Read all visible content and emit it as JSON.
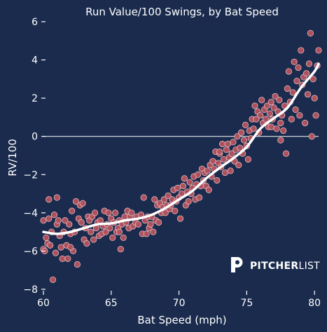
{
  "colors": {
    "background": "#1a2b4d",
    "points_fill": "#b3545f",
    "points_stroke": "#e6b8bd",
    "trend": "#ffffff",
    "zero_line": "#ffffff",
    "text": "#ffffff"
  },
  "chart_data": {
    "type": "scatter",
    "title": "Run Value/100 Swings, by Bat Speed",
    "xlabel": "Bat Speed (mph)",
    "ylabel": "RV/100",
    "xlim": [
      60,
      80.3
    ],
    "ylim": [
      -8,
      6
    ],
    "x_ticks": [
      "60",
      "65",
      "70",
      "75",
      "80"
    ],
    "y_ticks": [
      "6",
      "4",
      "2",
      "0",
      "−2",
      "−4",
      "−6",
      "−8"
    ],
    "grid": false,
    "reference_line_y": 0,
    "points": [
      [
        60.0,
        -4.4
      ],
      [
        60.0,
        -5.9
      ],
      [
        60.1,
        -6.0
      ],
      [
        60.2,
        -5.3
      ],
      [
        60.3,
        -5.6
      ],
      [
        60.4,
        -4.3
      ],
      [
        60.4,
        -3.3
      ],
      [
        60.5,
        -5.7
      ],
      [
        60.6,
        -5.0
      ],
      [
        60.7,
        -7.5
      ],
      [
        60.8,
        -4.1
      ],
      [
        60.9,
        -6.1
      ],
      [
        61.0,
        -3.2
      ],
      [
        61.0,
        -4.6
      ],
      [
        61.1,
        -4.4
      ],
      [
        61.2,
        -5.2
      ],
      [
        61.3,
        -5.8
      ],
      [
        61.4,
        -6.4
      ],
      [
        61.5,
        -5.0
      ],
      [
        61.6,
        -4.4
      ],
      [
        61.7,
        -5.7
      ],
      [
        61.8,
        -6.4
      ],
      [
        61.9,
        -4.6
      ],
      [
        62.0,
        -5.1
      ],
      [
        62.1,
        -3.9
      ],
      [
        62.2,
        -6.0
      ],
      [
        62.3,
        -5.0
      ],
      [
        62.4,
        -3.4
      ],
      [
        62.5,
        -6.7
      ],
      [
        62.6,
        -4.3
      ],
      [
        62.7,
        -3.6
      ],
      [
        62.8,
        -4.5
      ],
      [
        62.9,
        -3.5
      ],
      [
        63.0,
        -5.4
      ],
      [
        63.1,
        -4.8
      ],
      [
        63.2,
        -5.6
      ],
      [
        63.3,
        -4.2
      ],
      [
        63.4,
        -4.4
      ],
      [
        63.5,
        -5.0
      ],
      [
        63.6,
        -4.2
      ],
      [
        63.7,
        -5.4
      ],
      [
        63.8,
        -4.0
      ],
      [
        63.9,
        -4.8
      ],
      [
        64.0,
        -4.5
      ],
      [
        64.1,
        -5.2
      ],
      [
        64.2,
        -4.4
      ],
      [
        64.3,
        -5.1
      ],
      [
        64.4,
        -4.7
      ],
      [
        64.5,
        -3.9
      ],
      [
        64.6,
        -5.0
      ],
      [
        64.7,
        -4.6
      ],
      [
        64.8,
        -4.0
      ],
      [
        64.9,
        -4.8
      ],
      [
        65.0,
        -4.3
      ],
      [
        65.1,
        -5.3
      ],
      [
        65.2,
        -4.5
      ],
      [
        65.3,
        -4.0
      ],
      [
        65.4,
        -5.0
      ],
      [
        65.5,
        -4.8
      ],
      [
        65.6,
        -4.4
      ],
      [
        65.7,
        -5.9
      ],
      [
        65.8,
        -4.6
      ],
      [
        65.9,
        -5.3
      ],
      [
        66.0,
        -4.2
      ],
      [
        66.1,
        -4.5
      ],
      [
        66.2,
        -3.9
      ],
      [
        66.3,
        -4.8
      ],
      [
        66.4,
        -4.2
      ],
      [
        66.5,
        -4.0
      ],
      [
        66.6,
        -4.7
      ],
      [
        66.8,
        -4.5
      ],
      [
        66.9,
        -4.2
      ],
      [
        67.0,
        -4.6
      ],
      [
        67.2,
        -4.1
      ],
      [
        67.3,
        -5.1
      ],
      [
        67.4,
        -3.2
      ],
      [
        67.5,
        -4.4
      ],
      [
        67.6,
        -5.1
      ],
      [
        67.7,
        -4.2
      ],
      [
        67.8,
        -4.8
      ],
      [
        67.9,
        -4.6
      ],
      [
        68.0,
        -4.2
      ],
      [
        68.1,
        -5.0
      ],
      [
        68.2,
        -3.3
      ],
      [
        68.3,
        -4.4
      ],
      [
        68.4,
        -3.6
      ],
      [
        68.5,
        -4.5
      ],
      [
        68.6,
        -3.5
      ],
      [
        68.7,
        -4.0
      ],
      [
        68.8,
        -3.7
      ],
      [
        68.9,
        -3.3
      ],
      [
        69.0,
        -4.0
      ],
      [
        69.1,
        -3.6
      ],
      [
        69.2,
        -3.1
      ],
      [
        69.3,
        -3.8
      ],
      [
        69.4,
        -3.6
      ],
      [
        69.5,
        -3.3
      ],
      [
        69.6,
        -2.8
      ],
      [
        69.7,
        -3.9
      ],
      [
        69.8,
        -3.4
      ],
      [
        69.9,
        -2.7
      ],
      [
        70.0,
        -3.2
      ],
      [
        70.1,
        -4.3
      ],
      [
        70.2,
        -3.0
      ],
      [
        70.3,
        -2.6
      ],
      [
        70.4,
        -2.2
      ],
      [
        70.5,
        -3.6
      ],
      [
        70.6,
        -2.9
      ],
      [
        70.7,
        -3.4
      ],
      [
        70.8,
        -2.4
      ],
      [
        70.9,
        -3.0
      ],
      [
        71.0,
        -2.7
      ],
      [
        71.1,
        -2.1
      ],
      [
        71.2,
        -3.3
      ],
      [
        71.3,
        -2.5
      ],
      [
        71.4,
        -2.0
      ],
      [
        71.5,
        -3.2
      ],
      [
        71.6,
        -2.6
      ],
      [
        71.7,
        -1.7
      ],
      [
        71.8,
        -2.3
      ],
      [
        71.9,
        -1.9
      ],
      [
        72.0,
        -2.6
      ],
      [
        72.1,
        -1.8
      ],
      [
        72.2,
        -2.8
      ],
      [
        72.3,
        -1.5
      ],
      [
        72.4,
        -2.1
      ],
      [
        72.5,
        -1.3
      ],
      [
        72.6,
        -1.7
      ],
      [
        72.7,
        -0.8
      ],
      [
        72.8,
        -2.3
      ],
      [
        72.9,
        -1.4
      ],
      [
        73.0,
        -0.9
      ],
      [
        73.1,
        -1.6
      ],
      [
        73.2,
        -0.4
      ],
      [
        73.3,
        -1.2
      ],
      [
        73.4,
        -1.9
      ],
      [
        73.5,
        -0.7
      ],
      [
        73.6,
        -0.4
      ],
      [
        73.7,
        -1.1
      ],
      [
        73.8,
        -1.8
      ],
      [
        73.9,
        -0.9
      ],
      [
        74.0,
        -0.3
      ],
      [
        74.1,
        -1.3
      ],
      [
        74.2,
        -0.7
      ],
      [
        74.3,
        0.0
      ],
      [
        74.4,
        -1.5
      ],
      [
        74.5,
        -0.6
      ],
      [
        74.6,
        0.2
      ],
      [
        74.7,
        -0.9
      ],
      [
        74.8,
        -0.2
      ],
      [
        74.9,
        0.6
      ],
      [
        75.0,
        -0.5
      ],
      [
        75.1,
        -1.2
      ],
      [
        75.2,
        0.3
      ],
      [
        75.3,
        -0.1
      ],
      [
        75.4,
        0.9
      ],
      [
        75.5,
        0.4
      ],
      [
        75.6,
        1.6
      ],
      [
        75.7,
        0.9
      ],
      [
        75.8,
        1.3
      ],
      [
        75.9,
        0.2
      ],
      [
        76.0,
        1.1
      ],
      [
        76.1,
        1.9
      ],
      [
        76.2,
        0.7
      ],
      [
        76.3,
        1.4
      ],
      [
        76.4,
        0.9
      ],
      [
        76.5,
        1.6
      ],
      [
        76.6,
        0.5
      ],
      [
        76.7,
        1.2
      ],
      [
        76.8,
        1.8
      ],
      [
        76.9,
        0.9
      ],
      [
        77.0,
        1.5
      ],
      [
        77.1,
        2.1
      ],
      [
        77.2,
        0.4
      ],
      [
        77.3,
        1.3
      ],
      [
        77.4,
        1.9
      ],
      [
        77.5,
        0.7
      ],
      [
        77.6,
        1.1
      ],
      [
        77.7,
        0.3
      ],
      [
        77.8,
        1.6
      ],
      [
        77.9,
        -0.9
      ],
      [
        78.0,
        2.5
      ],
      [
        78.1,
        3.4
      ],
      [
        78.2,
        1.8
      ],
      [
        78.3,
        0.9
      ],
      [
        78.4,
        2.3
      ],
      [
        78.5,
        3.9
      ],
      [
        78.6,
        1.4
      ],
      [
        78.7,
        2.9
      ],
      [
        78.8,
        3.6
      ],
      [
        78.9,
        1.1
      ],
      [
        79.0,
        4.5
      ],
      [
        79.1,
        2.7
      ],
      [
        79.2,
        3.1
      ],
      [
        79.3,
        0.7
      ],
      [
        79.4,
        3.3
      ],
      [
        79.5,
        2.2
      ],
      [
        79.6,
        3.8
      ],
      [
        79.7,
        5.4
      ],
      [
        79.8,
        0.0
      ],
      [
        79.9,
        3.0
      ],
      [
        80.0,
        2.0
      ],
      [
        80.1,
        1.1
      ],
      [
        80.2,
        3.7
      ],
      [
        80.3,
        4.5
      ],
      [
        77.5,
        -0.2
      ],
      [
        76.8,
        0.5
      ],
      [
        73.0,
        -0.8
      ],
      [
        65.6,
        -5.0
      ],
      [
        62.0,
        -5.8
      ]
    ],
    "trend_line": [
      [
        60.0,
        -5.0
      ],
      [
        61.0,
        -5.1
      ],
      [
        62.0,
        -5.0
      ],
      [
        63.0,
        -4.8
      ],
      [
        64.0,
        -4.6
      ],
      [
        65.0,
        -4.55
      ],
      [
        66.0,
        -4.4
      ],
      [
        67.0,
        -4.3
      ],
      [
        68.0,
        -4.1
      ],
      [
        69.0,
        -3.75
      ],
      [
        70.0,
        -3.3
      ],
      [
        71.0,
        -2.85
      ],
      [
        72.0,
        -2.2
      ],
      [
        73.0,
        -1.65
      ],
      [
        74.0,
        -1.15
      ],
      [
        75.0,
        -0.55
      ],
      [
        76.0,
        0.4
      ],
      [
        77.0,
        0.95
      ],
      [
        78.0,
        1.5
      ],
      [
        79.0,
        2.55
      ],
      [
        80.0,
        3.4
      ],
      [
        80.3,
        3.8
      ]
    ]
  },
  "logo": {
    "brand_bold": "PITCHER",
    "brand_light": "LIST"
  }
}
